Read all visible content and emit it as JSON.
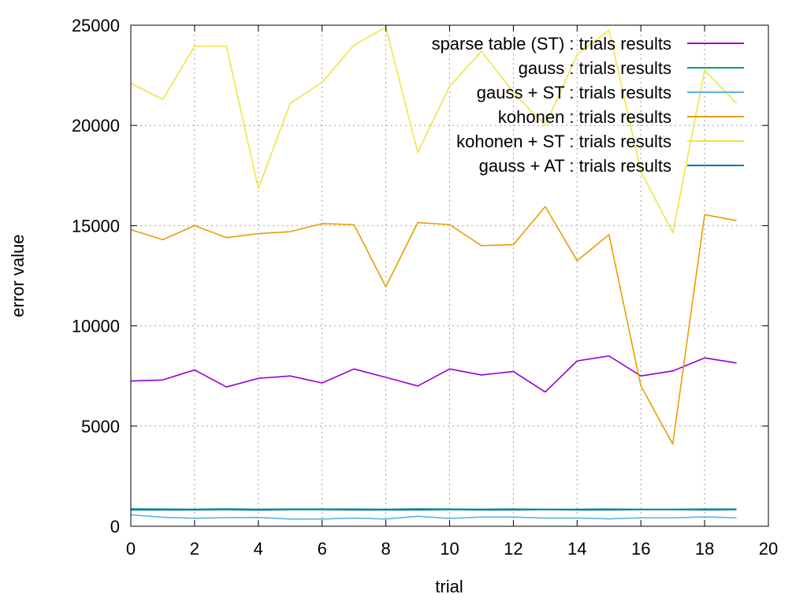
{
  "chart_data": {
    "type": "line",
    "title": "",
    "xlabel": "trial",
    "ylabel": "error value",
    "xlim": [
      0,
      20
    ],
    "ylim": [
      0,
      25000
    ],
    "x_ticks": [
      0,
      2,
      4,
      6,
      8,
      10,
      12,
      14,
      16,
      18,
      20
    ],
    "y_ticks": [
      0,
      5000,
      10000,
      15000,
      20000,
      25000
    ],
    "grid": true,
    "legend_position": "top-right",
    "x": [
      0,
      1,
      2,
      3,
      4,
      5,
      6,
      7,
      8,
      9,
      10,
      11,
      12,
      13,
      14,
      15,
      16,
      17,
      18,
      19
    ],
    "series": [
      {
        "name": "sparse table (ST) : trials results",
        "color": "#9400d3",
        "values": [
          7250,
          7300,
          7800,
          6950,
          7380,
          7500,
          7150,
          7850,
          7430,
          7000,
          7850,
          7550,
          7720,
          6700,
          8250,
          8500,
          7500,
          7750,
          8400,
          8150
        ]
      },
      {
        "name": "gauss : trials results",
        "color": "#009e73",
        "values": [
          870,
          860,
          850,
          870,
          850,
          860,
          860,
          860,
          850,
          870,
          860,
          850,
          860,
          850,
          850,
          860,
          850,
          850,
          860,
          860
        ]
      },
      {
        "name": "gauss + ST : trials results",
        "color": "#56b4e9",
        "values": [
          570,
          450,
          400,
          430,
          440,
          360,
          360,
          410,
          360,
          500,
          390,
          460,
          460,
          410,
          410,
          370,
          420,
          420,
          470,
          420
        ]
      },
      {
        "name": "kohonen : trials results",
        "color": "#e69f00",
        "values": [
          14800,
          14300,
          15000,
          14400,
          14600,
          14700,
          15100,
          15050,
          11950,
          15150,
          15050,
          14000,
          14050,
          15950,
          13250,
          14550,
          7000,
          4100,
          15550,
          15250
        ]
      },
      {
        "name": "kohonen + ST : trials results",
        "color": "#f0e442",
        "values": [
          22100,
          21300,
          23950,
          23950,
          16850,
          21100,
          22150,
          24000,
          24900,
          18650,
          21950,
          23700,
          21650,
          20000,
          23550,
          24750,
          17700,
          14650,
          22750,
          21100
        ]
      },
      {
        "name": "gauss + AT : trials results",
        "color": "#0072b2",
        "values": [
          820,
          820,
          820,
          830,
          810,
          830,
          830,
          820,
          820,
          820,
          830,
          820,
          820,
          830,
          820,
          820,
          830,
          830,
          820,
          830
        ]
      }
    ]
  }
}
